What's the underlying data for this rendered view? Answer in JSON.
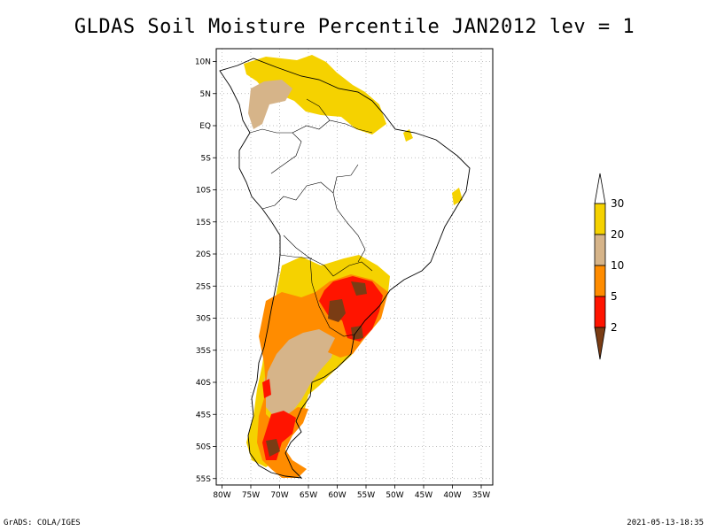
{
  "title": "GLDAS Soil Moisture Percentile JAN2012 lev = 1",
  "footer": {
    "left": "GrADS: COLA/IGES",
    "right": "2021-05-13-18:35"
  },
  "map": {
    "lat_labels": [
      "10N",
      "5N",
      "EQ",
      "5S",
      "10S",
      "15S",
      "20S",
      "25S",
      "30S",
      "35S",
      "40S",
      "45S",
      "50S",
      "55S"
    ],
    "lon_labels": [
      "80W",
      "75W",
      "70W",
      "65W",
      "60W",
      "55W",
      "50W",
      "45W",
      "40W",
      "35W"
    ],
    "lat_range": [
      -56,
      12
    ],
    "lon_range": [
      -81,
      -33
    ]
  },
  "colorbar": {
    "levels": [
      "30",
      "20",
      "10",
      "5",
      "2"
    ],
    "colors": {
      "above_30": "#ffffff",
      "c20_30": "#f5d200",
      "c10_20": "#d6b489",
      "c5_10": "#ff8c00",
      "c2_5": "#ff1400",
      "below_2": "#7a3c14"
    }
  }
}
